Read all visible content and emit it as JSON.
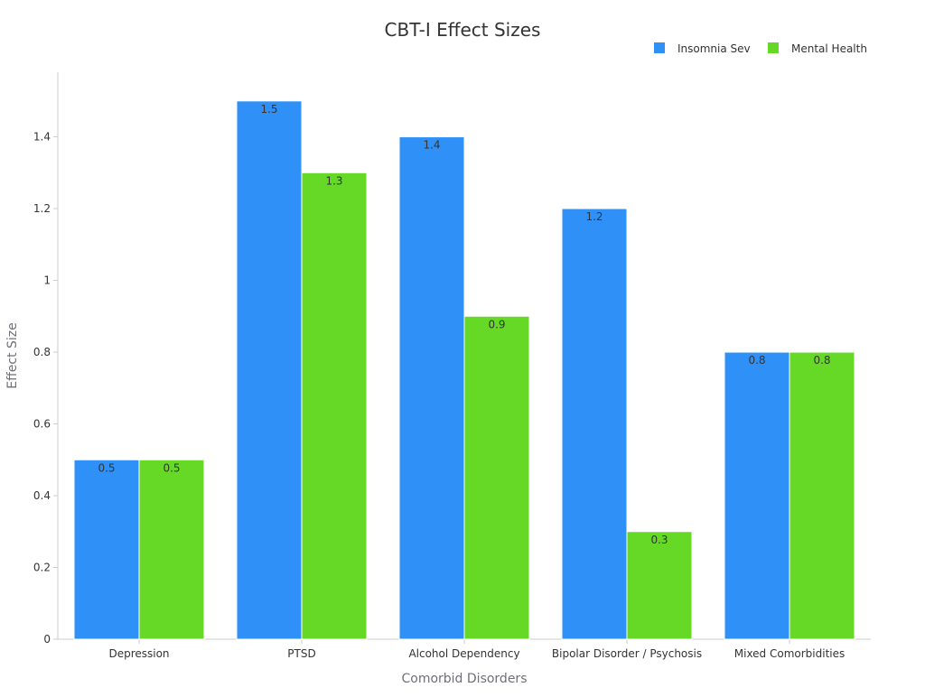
{
  "chart_data": {
    "type": "bar",
    "title": "CBT-I Effect Sizes",
    "xlabel": "Comorbid Disorders",
    "ylabel": "Effect Size",
    "categories": [
      "Depression",
      "PTSD",
      "Alcohol Dependency",
      "Bipolar Disorder / Psychosis",
      "Mixed Comorbidities"
    ],
    "series": [
      {
        "name": "Insomnia Sev",
        "color": "#2f91f7",
        "values": [
          0.5,
          1.5,
          1.4,
          1.2,
          0.8
        ]
      },
      {
        "name": "Mental Health",
        "color": "#66d926",
        "values": [
          0.5,
          1.3,
          0.9,
          0.3,
          0.8
        ]
      }
    ],
    "ylim": [
      0,
      1.58
    ],
    "yticks": [
      0,
      0.2,
      0.4,
      0.6,
      0.8,
      1,
      1.2,
      1.4
    ],
    "ytick_labels": [
      "0",
      "0.2",
      "0.4",
      "0.6",
      "0.8",
      "1",
      "1.2",
      "1.4"
    ],
    "grid": false,
    "legend": "top-right"
  }
}
